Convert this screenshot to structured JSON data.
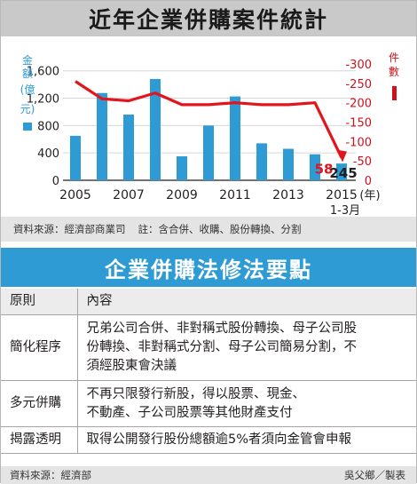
{
  "title": "近年企業併購案件統計",
  "chart_data": {
    "type": "bar+line",
    "categories": [
      "2005",
      "2006",
      "2007",
      "2008",
      "2009",
      "2010",
      "2011",
      "2012",
      "2013",
      "2014",
      "2015"
    ],
    "xticks": [
      "2005",
      "2007",
      "2009",
      "2011",
      "2013",
      "2015"
    ],
    "x_unit": "(年)",
    "x_last_sub": "1-3月",
    "left_axis": {
      "label_chars": [
        "金",
        "額",
        "(億",
        "元)"
      ],
      "ticks": [
        "0",
        "400",
        "800",
        "1,200",
        "1,600"
      ],
      "ylim": [
        0,
        1700
      ],
      "color": "#2f9bd4"
    },
    "right_axis": {
      "label_chars": [
        "件",
        "數"
      ],
      "ticks": [
        "0",
        "-50",
        "-100",
        "-150",
        "-200",
        "-250",
        "-300"
      ],
      "ylim": [
        0,
        300
      ],
      "color": "#d0111b"
    },
    "series": [
      {
        "name": "金額(億元)",
        "type": "bar",
        "color": "#2f9bd4",
        "values": [
          650,
          1275,
          960,
          1480,
          350,
          800,
          1225,
          540,
          460,
          380,
          245
        ]
      },
      {
        "name": "件數",
        "type": "line",
        "color": "#e2141c",
        "values": [
          255,
          210,
          205,
          225,
          195,
          195,
          200,
          195,
          195,
          200,
          58
        ]
      }
    ],
    "annotations": {
      "bar_last": "245",
      "line_last": "58"
    }
  },
  "source_note": "資料來源：經濟部商業司",
  "note": "註：含合併、收購、股份轉換、分割",
  "section_title": "企業併購法修法要點",
  "table": {
    "headers": [
      "原則",
      "內容"
    ],
    "rows": [
      {
        "k": "簡化程序",
        "v": [
          "兄弟公司合併、非對稱式股份轉換、母子公司股",
          "份轉換、非對稱式分割、母子公司簡易分割，不",
          "須經股東會決議"
        ]
      },
      {
        "k": "多元併購",
        "v": [
          "不再只限發行新股，得以股票、現金、",
          "不動產、子公司股票等其他財產支付"
        ]
      },
      {
        "k": "揭露透明",
        "v": [
          "取得公開發行股份總額逾5%者須向金管會申報"
        ]
      }
    ]
  },
  "footer_source": "資料來源：經濟部",
  "footer_credit": "吳父鄉／製表"
}
